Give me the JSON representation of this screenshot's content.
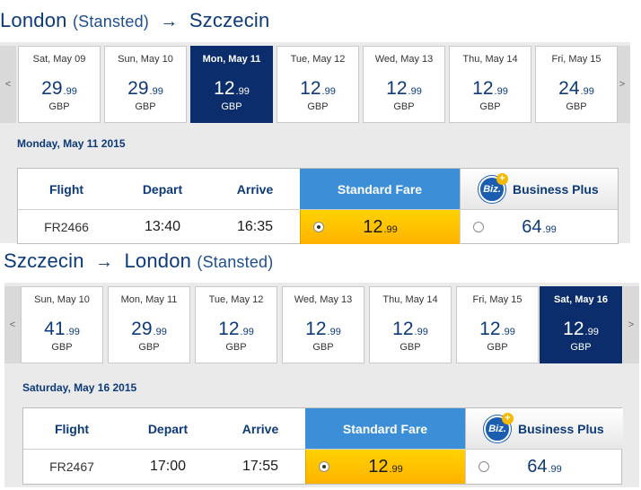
{
  "outbound": {
    "title": {
      "from": "London",
      "from_airport": "(Stansted)",
      "arrow": "→",
      "to": "Szczecin"
    },
    "nav": {
      "prev": "<",
      "next": ">"
    },
    "days": [
      {
        "date": "Sat, May 09",
        "price_main": "29",
        "price_cents": ".99",
        "currency": "GBP"
      },
      {
        "date": "Sun, May 10",
        "price_main": "29",
        "price_cents": ".99",
        "currency": "GBP"
      },
      {
        "date": "Mon, May 11",
        "price_main": "12",
        "price_cents": ".99",
        "currency": "GBP"
      },
      {
        "date": "Tue, May 12",
        "price_main": "12",
        "price_cents": ".99",
        "currency": "GBP"
      },
      {
        "date": "Wed, May 13",
        "price_main": "12",
        "price_cents": ".99",
        "currency": "GBP"
      },
      {
        "date": "Thu, May 14",
        "price_main": "12",
        "price_cents": ".99",
        "currency": "GBP"
      },
      {
        "date": "Fri, May 15",
        "price_main": "24",
        "price_cents": ".99",
        "currency": "GBP"
      }
    ],
    "selected_day_index": 2,
    "detail_date": "Monday, May 11 2015",
    "table": {
      "headers": {
        "flight": "Flight",
        "depart": "Depart",
        "arrive": "Arrive",
        "standard": "Standard Fare",
        "business": "Business Plus",
        "biz_logo": "Biz.",
        "biz_plus": "+"
      },
      "row": {
        "flight": "FR2466",
        "depart": "13:40",
        "arrive": "16:35",
        "standard_main": "12",
        "standard_cents": ".99",
        "business_main": "64",
        "business_cents": ".99"
      },
      "selected_fare": "standard"
    }
  },
  "return": {
    "title": {
      "from": "Szczecin",
      "arrow": "→",
      "to": "London",
      "to_airport": "(Stansted)"
    },
    "nav": {
      "prev": "<",
      "next": ">"
    },
    "days": [
      {
        "date": "Sun, May 10",
        "price_main": "41",
        "price_cents": ".99",
        "currency": "GBP"
      },
      {
        "date": "Mon, May 11",
        "price_main": "29",
        "price_cents": ".99",
        "currency": "GBP"
      },
      {
        "date": "Tue, May 12",
        "price_main": "12",
        "price_cents": ".99",
        "currency": "GBP"
      },
      {
        "date": "Wed, May 13",
        "price_main": "12",
        "price_cents": ".99",
        "currency": "GBP"
      },
      {
        "date": "Thu, May 14",
        "price_main": "12",
        "price_cents": ".99",
        "currency": "GBP"
      },
      {
        "date": "Fri, May 15",
        "price_main": "12",
        "price_cents": ".99",
        "currency": "GBP"
      },
      {
        "date": "Sat, May 16",
        "price_main": "12",
        "price_cents": ".99",
        "currency": "GBP"
      }
    ],
    "selected_day_index": 6,
    "detail_date": "Saturday, May 16 2015",
    "table": {
      "headers": {
        "flight": "Flight",
        "depart": "Depart",
        "arrive": "Arrive",
        "standard": "Standard Fare",
        "business": "Business Plus",
        "biz_logo": "Biz.",
        "biz_plus": "+"
      },
      "row": {
        "flight": "FR2467",
        "depart": "17:00",
        "arrive": "17:55",
        "standard_main": "12",
        "standard_cents": ".99",
        "business_main": "64",
        "business_cents": ".99"
      },
      "selected_fare": "standard"
    }
  },
  "colors": {
    "brand_navy": "#0b2d6b",
    "standard_header_blue": "#3c8fd6",
    "standard_fare_yellow": "#ffc400",
    "title_blue": "#0d3a78"
  },
  "icons": {
    "nav_prev": "chevron-left-icon",
    "nav_next": "chevron-right-icon",
    "business_logo": "biz-plus-logo"
  }
}
